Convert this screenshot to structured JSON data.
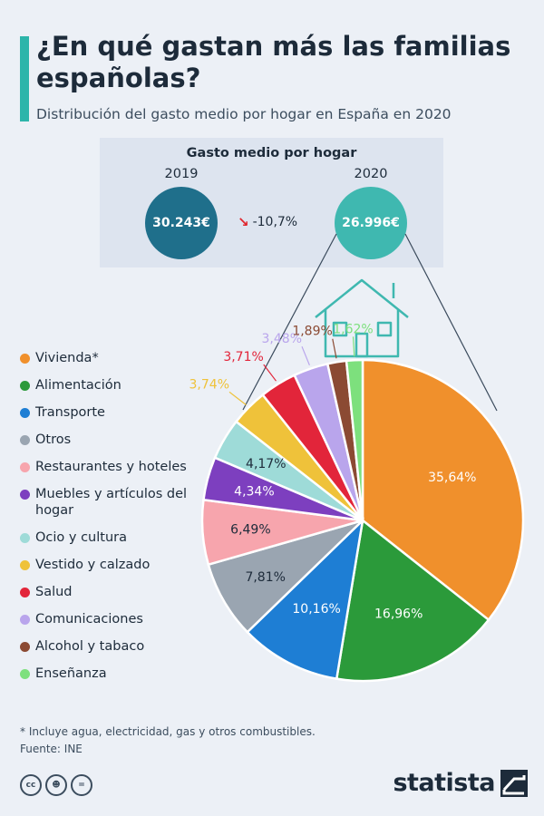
{
  "header": {
    "title": "¿En qué gastan más las familias españolas?",
    "subtitle": "Distribución del gasto medio por hogar en España en 2020"
  },
  "summary": {
    "title": "Gasto medio por hogar",
    "year_a": "2019",
    "value_a": "30.243€",
    "year_b": "2020",
    "value_b": "26.996€",
    "change": "-10,7%",
    "color_a": "#1f6f8b",
    "color_b": "#3fb8b0"
  },
  "chart_data": {
    "type": "pie",
    "categories": [
      "Vivienda*",
      "Alimentación",
      "Transporte",
      "Otros",
      "Restaurantes y hoteles",
      "Muebles y artículos del hogar",
      "Ocio y cultura",
      "Vestido y calzado",
      "Salud",
      "Comunicaciones",
      "Alcohol y tabaco",
      "Enseñanza"
    ],
    "values": [
      35.64,
      16.96,
      10.16,
      7.81,
      6.49,
      4.34,
      4.17,
      3.74,
      3.71,
      3.48,
      1.89,
      1.62
    ],
    "labels": [
      "35,64%",
      "16,96%",
      "10,16%",
      "7,81%",
      "6,49%",
      "4,34%",
      "4,17%",
      "3,74%",
      "3,71%",
      "3,48%",
      "1,89%",
      "1,62%"
    ],
    "colors": [
      "#f0902c",
      "#2b9a3a",
      "#1e7ed4",
      "#9aa5b1",
      "#f7a5ad",
      "#7d3fbf",
      "#9edbd8",
      "#efc23a",
      "#e2253a",
      "#b9a5ec",
      "#8b4a33",
      "#7de07d"
    ],
    "legend_position": "left"
  },
  "legend": [
    {
      "label": "Vivienda*",
      "color": "#f0902c"
    },
    {
      "label": "Alimentación",
      "color": "#2b9a3a"
    },
    {
      "label": "Transporte",
      "color": "#1e7ed4"
    },
    {
      "label": "Otros",
      "color": "#9aa5b1"
    },
    {
      "label": "Restaurantes y hoteles",
      "color": "#f7a5ad"
    },
    {
      "label": "Muebles y artículos del hogar",
      "color": "#7d3fbf"
    },
    {
      "label": "Ocio y cultura",
      "color": "#9edbd8"
    },
    {
      "label": "Vestido y calzado",
      "color": "#efc23a"
    },
    {
      "label": "Salud",
      "color": "#e2253a"
    },
    {
      "label": "Comunicaciones",
      "color": "#b9a5ec"
    },
    {
      "label": "Alcohol y tabaco",
      "color": "#8b4a33"
    },
    {
      "label": "Enseñanza",
      "color": "#7de07d"
    }
  ],
  "footer": {
    "note": "* Incluye agua, electricidad, gas y otros combustibles.",
    "source": "Fuente: INE",
    "brand": "statista",
    "cc_icons": [
      "cc-icon",
      "by-icon",
      "nd-icon"
    ]
  }
}
